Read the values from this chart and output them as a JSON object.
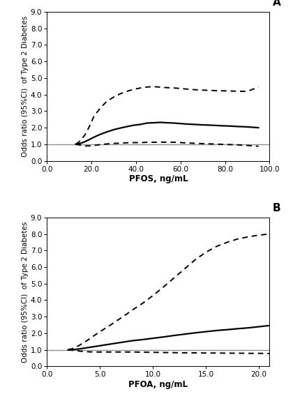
{
  "panel_A": {
    "label": "A",
    "xlabel": "PFOS, ng/mL",
    "ylabel": "Odds ratio (95%CI)  of Type 2 Diabetes",
    "xlim": [
      0.0,
      100.0
    ],
    "ylim": [
      0.0,
      9.0
    ],
    "xticks": [
      0.0,
      20.0,
      40.0,
      60.0,
      80.0,
      100.0
    ],
    "yticks": [
      0.0,
      1.0,
      2.0,
      3.0,
      4.0,
      5.0,
      6.0,
      7.0,
      8.0,
      9.0
    ],
    "ref_line": 1.0,
    "x": [
      13,
      15,
      17,
      19,
      21,
      24,
      27,
      30,
      33,
      36,
      39,
      42,
      45,
      48,
      51,
      54,
      57,
      60,
      63,
      66,
      70,
      74,
      78,
      82,
      86,
      90,
      95
    ],
    "or": [
      1.0,
      1.05,
      1.15,
      1.28,
      1.42,
      1.6,
      1.75,
      1.88,
      1.98,
      2.07,
      2.15,
      2.2,
      2.28,
      2.3,
      2.32,
      2.3,
      2.28,
      2.25,
      2.22,
      2.2,
      2.17,
      2.15,
      2.12,
      2.1,
      2.07,
      2.05,
      2.0
    ],
    "upper_ci": [
      1.0,
      1.2,
      1.55,
      2.05,
      2.65,
      3.2,
      3.6,
      3.85,
      4.05,
      4.2,
      4.32,
      4.4,
      4.46,
      4.48,
      4.45,
      4.42,
      4.4,
      4.37,
      4.33,
      4.3,
      4.27,
      4.25,
      4.23,
      4.22,
      4.2,
      4.2,
      4.45
    ],
    "lower_ci": [
      1.0,
      0.95,
      0.9,
      0.9,
      0.93,
      0.98,
      1.02,
      1.05,
      1.07,
      1.09,
      1.1,
      1.1,
      1.12,
      1.12,
      1.13,
      1.12,
      1.12,
      1.1,
      1.08,
      1.06,
      1.04,
      1.02,
      1.0,
      0.98,
      0.96,
      0.93,
      0.88
    ]
  },
  "panel_B": {
    "label": "B",
    "xlabel": "PFOA, ng/mL",
    "ylabel": "Odds ratio (95%CI)  of Type 2 Diabetes",
    "xlim": [
      0.0,
      21.0
    ],
    "ylim": [
      0.0,
      9.0
    ],
    "xticks": [
      0.0,
      5.0,
      10.0,
      15.0,
      20.0
    ],
    "yticks": [
      0.0,
      1.0,
      2.0,
      3.0,
      4.0,
      5.0,
      6.0,
      7.0,
      8.0,
      9.0
    ],
    "ref_line": 1.0,
    "x": [
      2.0,
      2.5,
      3.0,
      3.5,
      4.0,
      4.5,
      5.0,
      5.5,
      6.0,
      6.5,
      7.0,
      7.5,
      8.0,
      9.0,
      10.0,
      11.0,
      12.0,
      13.0,
      14.0,
      15.0,
      16.0,
      17.0,
      18.0,
      19.0,
      20.0,
      21.0
    ],
    "or": [
      1.0,
      1.02,
      1.05,
      1.1,
      1.15,
      1.2,
      1.25,
      1.3,
      1.35,
      1.4,
      1.45,
      1.5,
      1.55,
      1.62,
      1.7,
      1.78,
      1.87,
      1.95,
      2.03,
      2.1,
      2.17,
      2.22,
      2.28,
      2.33,
      2.4,
      2.47
    ],
    "upper_ci": [
      1.0,
      1.1,
      1.25,
      1.45,
      1.65,
      1.88,
      2.1,
      2.3,
      2.5,
      2.72,
      2.93,
      3.15,
      3.38,
      3.8,
      4.28,
      4.8,
      5.35,
      5.9,
      6.45,
      6.9,
      7.25,
      7.5,
      7.7,
      7.83,
      7.93,
      8.0
    ],
    "lower_ci": [
      1.0,
      0.97,
      0.93,
      0.9,
      0.88,
      0.87,
      0.87,
      0.87,
      0.87,
      0.87,
      0.87,
      0.87,
      0.87,
      0.86,
      0.85,
      0.84,
      0.83,
      0.82,
      0.82,
      0.81,
      0.81,
      0.8,
      0.8,
      0.79,
      0.79,
      0.78
    ]
  },
  "line_color": "#000000",
  "ref_color": "#909090",
  "dash_on": 4,
  "dash_off": 3,
  "solid_linewidth": 1.6,
  "dash_linewidth": 1.4,
  "ref_linewidth": 1.0,
  "ylabel_fontsize": 7.5,
  "xlabel_fontsize": 8.5,
  "tick_fontsize": 7.5,
  "label_fontsize": 11,
  "fig_width": 4.2,
  "fig_height": 5.65,
  "dpi": 100
}
